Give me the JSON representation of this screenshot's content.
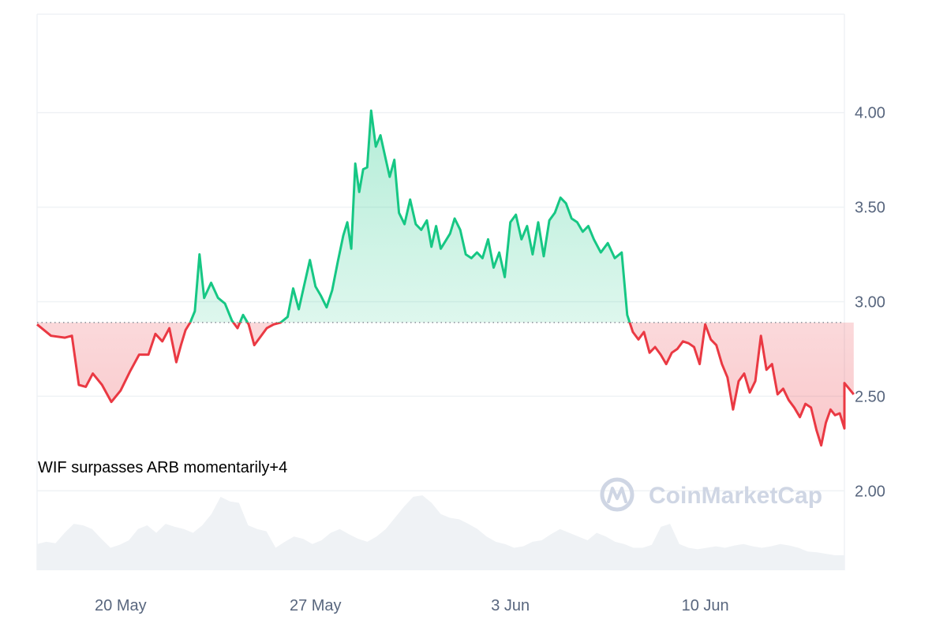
{
  "chart_data": {
    "type": "line",
    "y_ticks": [
      "4.00",
      "3.50",
      "3.00",
      "2.50",
      "2.00"
    ],
    "y_tick_values": [
      4.0,
      3.5,
      3.0,
      2.5,
      2.0
    ],
    "ylim": [
      1.58,
      4.52
    ],
    "x_ticks": [
      "20 May",
      "27 May",
      "3 Jun",
      "10 Jun"
    ],
    "x_tick_dates": [
      "2024-05-20",
      "2024-05-27",
      "2024-06-03",
      "2024-06-10"
    ],
    "xlim": [
      "2024-05-17",
      "2024-06-15"
    ],
    "baseline": 2.89,
    "grid": true,
    "colors": {
      "above": "#16c784",
      "below": "#ea3943",
      "volume": "#eff2f5",
      "grid": "#eff2f5",
      "baseline_dots": "#8a8f99"
    },
    "series": [
      {
        "points": [
          [
            "2024-05-17",
            2.88
          ],
          [
            "2024-05-17",
            2.82
          ],
          [
            "2024-05-18",
            2.81
          ],
          [
            "2024-05-18",
            2.82
          ],
          [
            "2024-05-18",
            2.56
          ],
          [
            "2024-05-18",
            2.55
          ],
          [
            "2024-05-19",
            2.62
          ],
          [
            "2024-05-19",
            2.56
          ],
          [
            "2024-05-19",
            2.47
          ],
          [
            "2024-05-20",
            2.53
          ],
          [
            "2024-05-20",
            2.63
          ],
          [
            "2024-05-20",
            2.72
          ],
          [
            "2024-05-21",
            2.72
          ],
          [
            "2024-05-21",
            2.83
          ],
          [
            "2024-05-21",
            2.79
          ],
          [
            "2024-05-21",
            2.86
          ],
          [
            "2024-05-22",
            2.68
          ],
          [
            "2024-05-22",
            2.77
          ],
          [
            "2024-05-22",
            2.85
          ],
          [
            "2024-05-22",
            2.89
          ],
          [
            "2024-05-22",
            2.95
          ],
          [
            "2024-05-22",
            3.25
          ],
          [
            "2024-05-23",
            3.02
          ],
          [
            "2024-05-23",
            3.1
          ],
          [
            "2024-05-23",
            3.02
          ],
          [
            "2024-05-23",
            2.99
          ],
          [
            "2024-05-24",
            2.9
          ],
          [
            "2024-05-24",
            2.86
          ],
          [
            "2024-05-24",
            2.93
          ],
          [
            "2024-05-24",
            2.88
          ],
          [
            "2024-05-24",
            2.77
          ],
          [
            "2024-05-25",
            2.81
          ],
          [
            "2024-05-25",
            2.86
          ],
          [
            "2024-05-25",
            2.88
          ],
          [
            "2024-05-25",
            2.89
          ],
          [
            "2024-05-26",
            2.92
          ],
          [
            "2024-05-26",
            3.07
          ],
          [
            "2024-05-26",
            2.96
          ],
          [
            "2024-05-26",
            3.09
          ],
          [
            "2024-05-26",
            3.22
          ],
          [
            "2024-05-27",
            3.08
          ],
          [
            "2024-05-27",
            3.03
          ],
          [
            "2024-05-27",
            2.97
          ],
          [
            "2024-05-27",
            3.06
          ],
          [
            "2024-05-27",
            3.21
          ],
          [
            "2024-05-28",
            3.35
          ],
          [
            "2024-05-28",
            3.42
          ],
          [
            "2024-05-28",
            3.28
          ],
          [
            "2024-05-28",
            3.73
          ],
          [
            "2024-05-28",
            3.58
          ],
          [
            "2024-05-28",
            3.7
          ],
          [
            "2024-05-28",
            3.71
          ],
          [
            "2024-05-29",
            4.01
          ],
          [
            "2024-05-29",
            3.82
          ],
          [
            "2024-05-29",
            3.88
          ],
          [
            "2024-05-29",
            3.77
          ],
          [
            "2024-05-29",
            3.66
          ],
          [
            "2024-05-29",
            3.75
          ],
          [
            "2024-05-30",
            3.47
          ],
          [
            "2024-05-30",
            3.41
          ],
          [
            "2024-05-30",
            3.54
          ],
          [
            "2024-05-30",
            3.41
          ],
          [
            "2024-05-30",
            3.38
          ],
          [
            "2024-05-31",
            3.43
          ],
          [
            "2024-05-31",
            3.29
          ],
          [
            "2024-05-31",
            3.4
          ],
          [
            "2024-05-31",
            3.28
          ],
          [
            "2024-05-31",
            3.32
          ],
          [
            "2024-05-31",
            3.36
          ],
          [
            "2024-06-01",
            3.44
          ],
          [
            "2024-06-01",
            3.38
          ],
          [
            "2024-06-01",
            3.25
          ],
          [
            "2024-06-01",
            3.23
          ],
          [
            "2024-06-01",
            3.26
          ],
          [
            "2024-06-02",
            3.23
          ],
          [
            "2024-06-02",
            3.33
          ],
          [
            "2024-06-02",
            3.18
          ],
          [
            "2024-06-02",
            3.26
          ],
          [
            "2024-06-02",
            3.13
          ],
          [
            "2024-06-03",
            3.42
          ],
          [
            "2024-06-03",
            3.46
          ],
          [
            "2024-06-03",
            3.33
          ],
          [
            "2024-06-03",
            3.4
          ],
          [
            "2024-06-03",
            3.25
          ],
          [
            "2024-06-04",
            3.42
          ],
          [
            "2024-06-04",
            3.24
          ],
          [
            "2024-06-04",
            3.43
          ],
          [
            "2024-06-04",
            3.47
          ],
          [
            "2024-06-04",
            3.55
          ],
          [
            "2024-06-05",
            3.52
          ],
          [
            "2024-06-05",
            3.44
          ],
          [
            "2024-06-05",
            3.42
          ],
          [
            "2024-06-05",
            3.37
          ],
          [
            "2024-06-05",
            3.4
          ],
          [
            "2024-06-06",
            3.33
          ],
          [
            "2024-06-06",
            3.26
          ],
          [
            "2024-06-06",
            3.31
          ],
          [
            "2024-06-06",
            3.23
          ],
          [
            "2024-06-07",
            3.26
          ],
          [
            "2024-06-07",
            2.93
          ],
          [
            "2024-06-07",
            2.84
          ],
          [
            "2024-06-07",
            2.8
          ],
          [
            "2024-06-07",
            2.84
          ],
          [
            "2024-06-08",
            2.73
          ],
          [
            "2024-06-08",
            2.76
          ],
          [
            "2024-06-08",
            2.72
          ],
          [
            "2024-06-08",
            2.67
          ],
          [
            "2024-06-08",
            2.73
          ],
          [
            "2024-06-09",
            2.75
          ],
          [
            "2024-06-09",
            2.79
          ],
          [
            "2024-06-09",
            2.78
          ],
          [
            "2024-06-09",
            2.76
          ],
          [
            "2024-06-09",
            2.67
          ],
          [
            "2024-06-10",
            2.88
          ],
          [
            "2024-06-10",
            2.8
          ],
          [
            "2024-06-10",
            2.77
          ],
          [
            "2024-06-10",
            2.67
          ],
          [
            "2024-06-10",
            2.6
          ],
          [
            "2024-06-11",
            2.43
          ],
          [
            "2024-06-11",
            2.58
          ],
          [
            "2024-06-11",
            2.62
          ],
          [
            "2024-06-11",
            2.52
          ],
          [
            "2024-06-11",
            2.58
          ],
          [
            "2024-06-12",
            2.82
          ],
          [
            "2024-06-12",
            2.64
          ],
          [
            "2024-06-12",
            2.67
          ],
          [
            "2024-06-12",
            2.51
          ],
          [
            "2024-06-12",
            2.54
          ],
          [
            "2024-06-13",
            2.48
          ],
          [
            "2024-06-13",
            2.44
          ],
          [
            "2024-06-13",
            2.39
          ],
          [
            "2024-06-13",
            2.46
          ],
          [
            "2024-06-13",
            2.44
          ],
          [
            "2024-06-14",
            2.32
          ],
          [
            "2024-06-14",
            2.24
          ],
          [
            "2024-06-14",
            2.36
          ],
          [
            "2024-06-14",
            2.43
          ],
          [
            "2024-06-14",
            2.4
          ],
          [
            "2024-06-14",
            2.41
          ],
          [
            "2024-06-15",
            2.33
          ],
          [
            "2024-06-15",
            2.51
          ],
          [
            "2024-06-15",
            2.57
          ]
        ]
      }
    ],
    "annotation": "WIF surpasses ARB momentarily+4",
    "watermark": "CoinMarketCap"
  }
}
